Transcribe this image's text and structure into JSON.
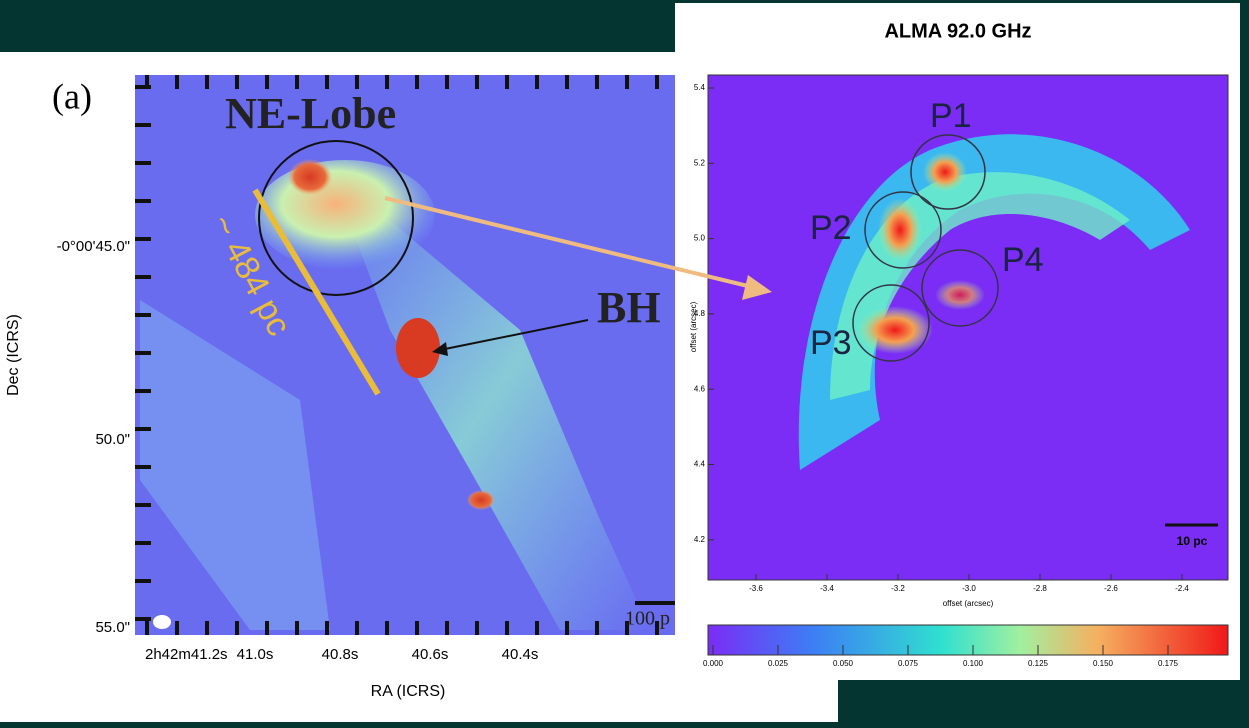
{
  "left_panel": {
    "label": "(a)",
    "lobe_label": "NE-Lobe",
    "bh_label": "BH",
    "scale_label": "~ 484 pc",
    "scalebar_label": "100 p",
    "y_axis_title": "Dec (ICRS)",
    "x_axis_title": "RA (ICRS)",
    "y_ticks": [
      "-0°00'45.0\"",
      "50.0\"",
      "55.0\""
    ],
    "x_ticks": [
      "2h42m41.2s",
      "41.0s",
      "40.8s",
      "40.6s",
      "40.4s"
    ]
  },
  "right_panel": {
    "title": "ALMA 92.0 GHz",
    "peaks": [
      "P1",
      "P2",
      "P3",
      "P4"
    ],
    "y_ticks": [
      "5.4",
      "5.2",
      "5.0",
      "4.8",
      "4.6",
      "4.4",
      "4.2"
    ],
    "y_axis_title": "offset (arcsec)",
    "x_ticks": [
      "-3.6",
      "-3.4",
      "-3.2",
      "-3.0",
      "-2.8",
      "-2.6",
      "-2.4"
    ],
    "x_axis_title": "offset (arcsec)",
    "scalebar_label": "10 pc",
    "colorbar_ticks": [
      "0.000",
      "0.025",
      "0.050",
      "0.075",
      "0.100",
      "0.125",
      "0.150",
      "0.175"
    ]
  }
}
